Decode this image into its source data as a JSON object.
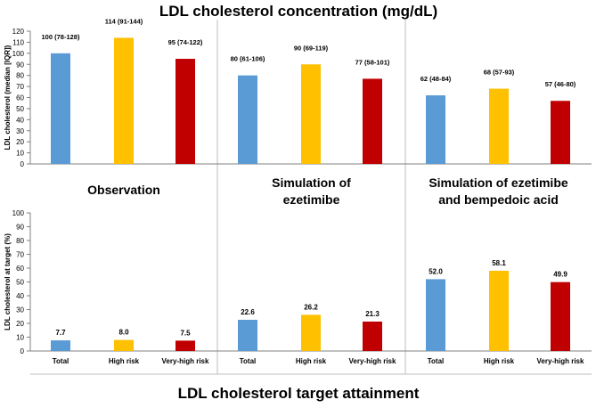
{
  "header_title": "LDL cholesterol concentration (mg/dL)",
  "footer_title": "LDL cholesterol target attainment",
  "colors": {
    "total": "#5b9bd5",
    "high": "#ffc000",
    "veryhigh": "#c00000",
    "grid": "#bfbfbf",
    "axis": "#808080"
  },
  "chart_data": [
    {
      "type": "bar",
      "title": "LDL cholesterol concentration (mg/dL)",
      "ylabel": "LDL cholesterol (median [IQR])",
      "ylim": [
        0,
        120
      ],
      "yticks": [
        0,
        10,
        20,
        30,
        40,
        50,
        60,
        70,
        80,
        90,
        100,
        110,
        120
      ],
      "panel_titles": [
        [
          "Observation"
        ],
        [
          "Simulation of",
          "ezetimibe"
        ],
        [
          "Simulation of ezetimibe",
          "and bempedoic acid"
        ]
      ],
      "categories": [
        "Total",
        "High risk",
        "Very-high risk"
      ],
      "panels": [
        {
          "values": [
            100,
            114,
            95
          ],
          "labels": [
            "100 (78-128)",
            "114 (91-144)",
            "95 (74-122)"
          ]
        },
        {
          "values": [
            80,
            90,
            77
          ],
          "labels": [
            "80 (61-106)",
            "90 (69-119)",
            "77 (58-101)"
          ]
        },
        {
          "values": [
            62,
            68,
            57
          ],
          "labels": [
            "62 (48-84)",
            "68 (57-93)",
            "57 (46-80)"
          ]
        }
      ]
    },
    {
      "type": "bar",
      "title": "LDL cholesterol target attainment",
      "ylabel": "LDL cholesterol at target (%)",
      "ylim": [
        0,
        100
      ],
      "yticks": [
        0,
        10,
        20,
        30,
        40,
        50,
        60,
        70,
        80,
        90,
        100
      ],
      "categories": [
        "Total",
        "High risk",
        "Very-high risk"
      ],
      "panels": [
        {
          "values": [
            7.7,
            8.0,
            7.5
          ],
          "labels": [
            "7.7",
            "8.0",
            "7.5"
          ]
        },
        {
          "values": [
            22.6,
            26.2,
            21.3
          ],
          "labels": [
            "22.6",
            "26.2",
            "21.3"
          ]
        },
        {
          "values": [
            52.0,
            58.1,
            49.9
          ],
          "labels": [
            "52.0",
            "58.1",
            "49.9"
          ]
        }
      ]
    }
  ]
}
